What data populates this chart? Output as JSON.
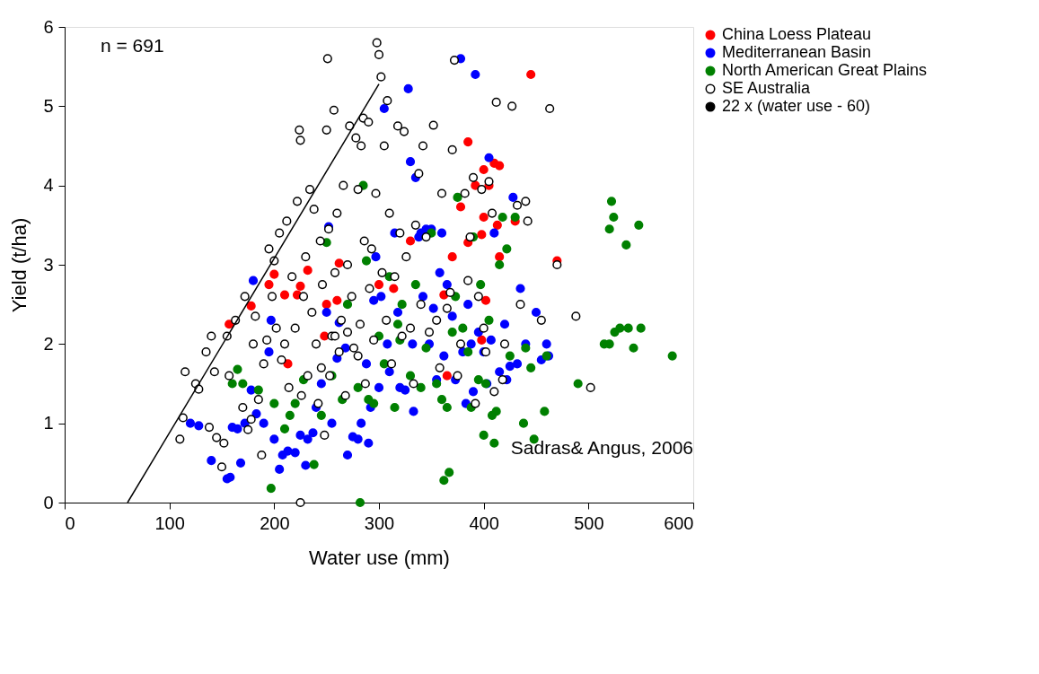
{
  "chart_data": {
    "type": "scatter",
    "xlabel": "Water use (mm)",
    "ylabel": "Yield (t/ha)",
    "xlim": [
      0,
      600
    ],
    "ylim": [
      0,
      6
    ],
    "xticks": [
      0,
      100,
      200,
      300,
      400,
      500,
      600
    ],
    "yticks": [
      0,
      1,
      2,
      3,
      4,
      5,
      6
    ],
    "grid": false,
    "legend": "top right",
    "marker": "circle",
    "annotations": [
      "n = 691",
      "Sadras& Angus, 2006"
    ],
    "series": [
      {
        "name": "China Loess Plateau",
        "color": "#ff0000",
        "x": [
          157,
          178,
          195,
          200,
          210,
          222,
          225,
          232,
          262,
          250,
          260,
          213,
          248,
          300,
          330,
          370,
          365,
          385,
          385,
          392,
          398,
          400,
          400,
          405,
          410,
          413,
          415,
          415,
          402,
          378,
          445,
          470,
          362,
          430,
          398,
          314
        ],
        "values": [
          2.25,
          2.48,
          2.75,
          2.88,
          2.62,
          2.62,
          2.73,
          2.93,
          3.02,
          2.5,
          2.55,
          1.75,
          2.1,
          2.75,
          3.3,
          3.1,
          1.6,
          4.55,
          3.28,
          4.0,
          3.38,
          4.2,
          3.6,
          4.0,
          4.28,
          3.5,
          4.25,
          3.1,
          2.55,
          3.73,
          5.4,
          3.05,
          2.62,
          3.55,
          2.05,
          2.7
        ]
      },
      {
        "name": "Mediterranean Basin",
        "color": "#0000ff",
        "x": [
          120,
          128,
          140,
          155,
          158,
          160,
          165,
          168,
          172,
          178,
          180,
          183,
          190,
          195,
          197,
          200,
          205,
          208,
          213,
          220,
          225,
          230,
          232,
          237,
          240,
          245,
          250,
          252,
          255,
          260,
          262,
          268,
          270,
          275,
          280,
          283,
          288,
          290,
          292,
          295,
          297,
          300,
          302,
          305,
          308,
          310,
          315,
          318,
          320,
          325,
          328,
          330,
          332,
          333,
          335,
          338,
          340,
          342,
          345,
          348,
          350,
          352,
          355,
          358,
          360,
          362,
          365,
          370,
          373,
          378,
          380,
          383,
          385,
          388,
          390,
          392,
          395,
          400,
          403,
          405,
          407,
          410,
          415,
          420,
          422,
          425,
          428,
          432,
          435,
          440,
          450,
          460,
          462,
          455
        ],
        "values": [
          1.0,
          0.97,
          0.53,
          0.3,
          0.32,
          0.95,
          0.93,
          0.5,
          1.0,
          1.42,
          2.8,
          1.12,
          1.0,
          1.9,
          2.3,
          0.8,
          0.42,
          0.6,
          0.65,
          0.63,
          0.85,
          0.47,
          0.8,
          0.88,
          1.2,
          1.5,
          2.4,
          3.48,
          1.0,
          1.82,
          2.27,
          1.95,
          0.6,
          0.83,
          0.8,
          1.0,
          1.75,
          0.75,
          1.2,
          2.55,
          3.1,
          1.45,
          2.6,
          4.97,
          2.0,
          1.65,
          3.4,
          2.4,
          1.45,
          1.42,
          5.22,
          4.3,
          2.0,
          1.15,
          4.1,
          3.35,
          3.4,
          2.6,
          3.45,
          2.0,
          3.45,
          2.45,
          1.55,
          2.9,
          3.4,
          1.85,
          2.75,
          2.35,
          1.55,
          5.6,
          1.9,
          1.25,
          2.5,
          2.0,
          1.4,
          5.4,
          2.15,
          1.9,
          1.5,
          4.35,
          2.05,
          3.4,
          1.65,
          2.25,
          1.55,
          1.72,
          3.85,
          1.75,
          2.7,
          2.0,
          2.4,
          2.0,
          1.85,
          1.8
        ]
      },
      {
        "name": "North American Great Plains",
        "color": "#008000",
        "x": [
          160,
          165,
          170,
          185,
          197,
          200,
          210,
          215,
          220,
          228,
          238,
          245,
          250,
          255,
          265,
          270,
          280,
          282,
          285,
          288,
          290,
          295,
          300,
          305,
          310,
          315,
          318,
          320,
          322,
          330,
          335,
          340,
          345,
          350,
          355,
          360,
          362,
          365,
          367,
          370,
          373,
          375,
          380,
          385,
          388,
          390,
          395,
          397,
          400,
          402,
          405,
          408,
          410,
          412,
          415,
          418,
          422,
          425,
          430,
          438,
          440,
          445,
          448,
          458,
          460,
          490,
          515,
          520,
          520,
          522,
          524,
          525,
          530,
          536,
          538,
          543,
          548,
          550,
          580
        ],
        "values": [
          1.5,
          1.68,
          1.5,
          1.42,
          0.18,
          1.25,
          0.93,
          1.1,
          1.25,
          1.55,
          0.48,
          1.1,
          3.28,
          1.6,
          1.3,
          2.5,
          1.45,
          0.0,
          4.0,
          3.05,
          1.3,
          1.25,
          2.1,
          1.75,
          2.85,
          1.2,
          2.25,
          2.05,
          2.5,
          1.6,
          2.75,
          1.45,
          1.95,
          3.4,
          1.5,
          1.3,
          0.28,
          1.2,
          0.38,
          2.15,
          2.6,
          3.85,
          2.2,
          1.9,
          1.2,
          3.35,
          1.55,
          2.75,
          0.85,
          1.5,
          2.3,
          1.1,
          0.75,
          1.15,
          3.0,
          3.6,
          3.2,
          1.85,
          3.6,
          1.0,
          1.95,
          1.7,
          0.8,
          1.15,
          1.85,
          1.5,
          2.0,
          2.0,
          3.45,
          3.8,
          3.6,
          2.15,
          2.2,
          3.25,
          2.2,
          1.95,
          3.5,
          2.2,
          1.85
        ]
      },
      {
        "name": "SE Australia",
        "color": "#ffffff",
        "x": [
          110,
          113,
          115,
          125,
          128,
          135,
          138,
          140,
          143,
          145,
          150,
          152,
          155,
          157,
          163,
          170,
          172,
          175,
          178,
          180,
          182,
          185,
          188,
          190,
          193,
          195,
          198,
          200,
          202,
          205,
          207,
          210,
          212,
          214,
          217,
          220,
          222,
          224,
          225,
          226,
          228,
          230,
          232,
          234,
          236,
          238,
          240,
          242,
          244,
          246,
          248,
          250,
          251,
          252,
          253,
          255,
          257,
          258,
          260,
          262,
          264,
          266,
          268,
          270,
          272,
          274,
          276,
          278,
          280,
          282,
          283,
          285,
          286,
          287,
          290,
          291,
          293,
          295,
          297,
          298,
          300,
          302,
          303,
          305,
          307,
          308,
          310,
          312,
          315,
          318,
          320,
          322,
          324,
          326,
          330,
          333,
          335,
          338,
          340,
          342,
          345,
          348,
          352,
          355,
          358,
          360,
          365,
          368,
          370,
          372,
          375,
          378,
          382,
          385,
          387,
          390,
          392,
          395,
          398,
          400,
          402,
          405,
          408,
          410,
          412,
          418,
          420,
          427,
          432,
          435,
          440,
          442,
          455,
          463,
          470,
          488,
          502,
          225,
          245,
          258,
          270,
          280
        ],
        "values": [
          0.8,
          1.07,
          1.65,
          1.5,
          1.43,
          1.9,
          0.95,
          2.1,
          1.65,
          0.82,
          0.45,
          0.75,
          2.1,
          1.6,
          2.3,
          1.2,
          2.6,
          0.92,
          1.05,
          2.0,
          2.35,
          1.3,
          0.6,
          1.75,
          2.05,
          3.2,
          2.6,
          3.05,
          2.2,
          3.4,
          1.8,
          2.0,
          3.55,
          1.45,
          2.85,
          2.2,
          3.8,
          4.7,
          4.57,
          1.35,
          2.6,
          3.1,
          1.6,
          3.95,
          2.4,
          3.7,
          2.0,
          1.25,
          3.3,
          2.75,
          0.85,
          4.7,
          5.6,
          3.45,
          1.6,
          2.1,
          4.95,
          2.9,
          3.65,
          1.9,
          2.3,
          4.0,
          1.35,
          3.0,
          4.75,
          2.6,
          1.95,
          4.6,
          3.95,
          2.25,
          4.5,
          4.85,
          3.3,
          1.5,
          4.8,
          2.7,
          3.2,
          2.05,
          3.9,
          5.8,
          5.65,
          5.37,
          2.9,
          4.5,
          2.3,
          5.07,
          3.65,
          1.75,
          2.85,
          4.75,
          3.4,
          2.1,
          4.68,
          3.1,
          2.2,
          1.5,
          3.5,
          4.15,
          2.5,
          4.5,
          3.35,
          2.15,
          4.76,
          2.3,
          1.7,
          3.9,
          2.45,
          2.65,
          4.45,
          5.58,
          1.6,
          2.0,
          3.9,
          2.8,
          3.35,
          4.1,
          1.25,
          2.6,
          3.95,
          2.2,
          1.9,
          4.05,
          3.65,
          1.4,
          5.05,
          1.55,
          2.0,
          5.0,
          3.75,
          2.5,
          3.8,
          3.55,
          2.3,
          4.97,
          3.0,
          2.35,
          1.45,
          0.0,
          1.7,
          2.1,
          2.15,
          1.85
        ]
      },
      {
        "name": "22 x (water use - 60)",
        "type": "line",
        "color": "#000000",
        "line_style": "solid",
        "marker": "none",
        "x": [
          60,
          300
        ],
        "values": [
          0,
          5.28
        ]
      }
    ]
  }
}
